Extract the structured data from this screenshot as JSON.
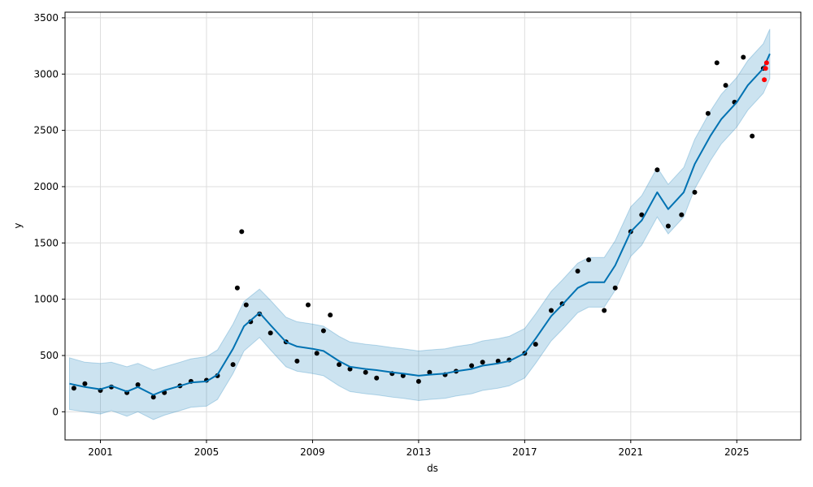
{
  "chart_data": {
    "type": "line",
    "title": "",
    "xlabel": "ds",
    "ylabel": "y",
    "x_ticks": [
      "2001",
      "2005",
      "2009",
      "2013",
      "2017",
      "2021",
      "2025"
    ],
    "y_ticks": [
      "0",
      "500",
      "1000",
      "1500",
      "2000",
      "2500",
      "3000",
      "3500"
    ],
    "xlim": [
      "1999-09-01",
      "2027-06-01"
    ],
    "ylim": [
      -250,
      3550
    ],
    "grid": true,
    "legend": "none",
    "series": [
      {
        "kind": "scatter",
        "x": [
          "2000-01-01",
          "2000-06-01",
          "2001-01-01",
          "2001-06-01",
          "2002-01-01",
          "2002-06-01",
          "2003-01-01",
          "2003-06-01",
          "2004-01-01",
          "2004-06-01",
          "2005-01-01",
          "2005-06-01",
          "2006-01-01",
          "2006-03-01",
          "2006-05-01",
          "2006-07-01",
          "2006-09-01",
          "2007-01-01",
          "2007-06-01",
          "2008-01-01",
          "2008-06-01",
          "2008-11-01",
          "2009-03-01",
          "2009-06-01",
          "2009-09-01",
          "2010-01-01",
          "2010-06-01",
          "2011-01-01",
          "2011-06-01",
          "2012-01-01",
          "2012-06-01",
          "2013-01-01",
          "2013-06-01",
          "2014-01-01",
          "2014-06-01",
          "2015-01-01",
          "2015-06-01",
          "2016-01-01",
          "2016-06-01",
          "2017-01-01",
          "2017-06-01",
          "2018-01-01",
          "2018-06-01",
          "2019-01-01",
          "2019-06-01",
          "2020-01-01",
          "2020-06-01",
          "2021-01-01",
          "2021-06-01",
          "2022-01-01",
          "2022-06-01",
          "2022-12-01",
          "2023-06-01",
          "2023-12-01",
          "2024-04-01",
          "2024-08-01",
          "2024-12-01",
          "2025-04-01",
          "2025-08-01",
          "2026-01-01"
        ],
        "values": [
          210,
          250,
          190,
          220,
          170,
          240,
          130,
          170,
          230,
          270,
          280,
          320,
          420,
          1100,
          1600,
          950,
          800,
          870,
          700,
          620,
          450,
          950,
          520,
          720,
          860,
          420,
          380,
          350,
          300,
          340,
          320,
          270,
          350,
          330,
          360,
          410,
          440,
          450,
          460,
          520,
          600,
          900,
          960,
          1250,
          1350,
          900,
          1100,
          1600,
          1750,
          2150,
          1650,
          1750,
          1950,
          2650,
          3100,
          2900,
          2750,
          3150,
          2450,
          3050
        ],
        "color": "#000000"
      },
      {
        "kind": "scatter",
        "name": "",
        "x": [
          "2026-01-15",
          "2026-02-01",
          "2026-02-15"
        ],
        "values": [
          2950,
          3050,
          3100
        ],
        "color": "#ff0000"
      },
      {
        "kind": "line",
        "x": [
          "1999-11-01",
          "2000-06-01",
          "2001-01-01",
          "2001-06-01",
          "2002-01-01",
          "2002-06-01",
          "2003-01-01",
          "2003-06-01",
          "2004-01-01",
          "2004-06-01",
          "2005-01-01",
          "2005-06-01",
          "2006-01-01",
          "2006-06-01",
          "2007-01-01",
          "2007-06-01",
          "2008-01-01",
          "2008-06-01",
          "2009-01-01",
          "2009-06-01",
          "2010-01-01",
          "2010-06-01",
          "2011-01-01",
          "2011-06-01",
          "2012-01-01",
          "2012-06-01",
          "2013-01-01",
          "2013-06-01",
          "2014-01-01",
          "2014-06-01",
          "2015-01-01",
          "2015-06-01",
          "2016-01-01",
          "2016-06-01",
          "2017-01-01",
          "2017-06-01",
          "2018-01-01",
          "2018-06-01",
          "2019-01-01",
          "2019-06-01",
          "2020-01-01",
          "2020-06-01",
          "2021-01-01",
          "2021-06-01",
          "2022-01-01",
          "2022-06-01",
          "2023-01-01",
          "2023-06-01",
          "2024-01-01",
          "2024-06-01",
          "2025-01-01",
          "2025-06-01",
          "2026-01-01",
          "2026-04-01"
        ],
        "values": [
          250,
          220,
          200,
          230,
          180,
          220,
          150,
          190,
          230,
          260,
          270,
          330,
          560,
          760,
          880,
          770,
          620,
          580,
          560,
          540,
          450,
          400,
          380,
          370,
          350,
          340,
          320,
          330,
          340,
          360,
          380,
          410,
          430,
          450,
          520,
          650,
          850,
          950,
          1100,
          1150,
          1150,
          1300,
          1600,
          1700,
          1950,
          1800,
          1950,
          2200,
          2450,
          2600,
          2750,
          2900,
          3050,
          3180
        ],
        "color": "#0072b2"
      }
    ],
    "band": {
      "name": "",
      "x": [
        "1999-11-01",
        "2000-06-01",
        "2001-01-01",
        "2001-06-01",
        "2002-01-01",
        "2002-06-01",
        "2003-01-01",
        "2003-06-01",
        "2004-01-01",
        "2004-06-01",
        "2005-01-01",
        "2005-06-01",
        "2006-01-01",
        "2006-06-01",
        "2007-01-01",
        "2007-06-01",
        "2008-01-01",
        "2008-06-01",
        "2009-01-01",
        "2009-06-01",
        "2010-01-01",
        "2010-06-01",
        "2011-01-01",
        "2011-06-01",
        "2012-01-01",
        "2012-06-01",
        "2013-01-01",
        "2013-06-01",
        "2014-01-01",
        "2014-06-01",
        "2015-01-01",
        "2015-06-01",
        "2016-01-01",
        "2016-06-01",
        "2017-01-01",
        "2017-06-01",
        "2018-01-01",
        "2018-06-01",
        "2019-01-01",
        "2019-06-01",
        "2020-01-01",
        "2020-06-01",
        "2021-01-01",
        "2021-06-01",
        "2022-01-01",
        "2022-06-01",
        "2023-01-01",
        "2023-06-01",
        "2024-01-01",
        "2024-06-01",
        "2025-01-01",
        "2025-06-01",
        "2026-01-01",
        "2026-04-01"
      ],
      "upper": [
        480,
        440,
        430,
        440,
        400,
        430,
        370,
        400,
        440,
        470,
        490,
        550,
        780,
        980,
        1090,
        990,
        840,
        800,
        780,
        760,
        670,
        620,
        600,
        590,
        570,
        560,
        540,
        550,
        560,
        580,
        600,
        630,
        650,
        670,
        740,
        870,
        1070,
        1170,
        1320,
        1370,
        1370,
        1520,
        1820,
        1920,
        2170,
        2020,
        2170,
        2420,
        2670,
        2820,
        2970,
        3120,
        3270,
        3400
      ],
      "lower": [
        20,
        0,
        -20,
        10,
        -40,
        0,
        -70,
        -30,
        10,
        40,
        50,
        110,
        340,
        540,
        660,
        550,
        400,
        360,
        340,
        320,
        230,
        180,
        160,
        150,
        130,
        120,
        100,
        110,
        120,
        140,
        160,
        190,
        210,
        230,
        300,
        430,
        630,
        730,
        880,
        930,
        930,
        1080,
        1380,
        1480,
        1730,
        1580,
        1730,
        1980,
        2230,
        2380,
        2530,
        2680,
        2830,
        2960
      ],
      "color": "#0072b2"
    }
  }
}
